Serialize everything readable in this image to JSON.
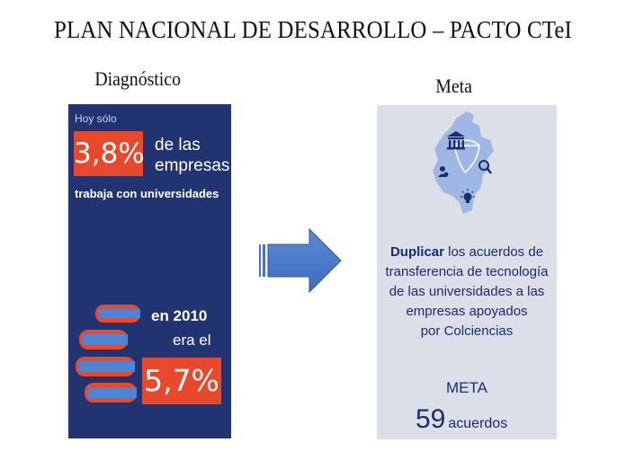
{
  "slide": {
    "title": "PLAN NACIONAL DE DESARROLLO – PACTO CTeI",
    "left_label": "Diagnóstico",
    "right_label": "Meta"
  },
  "diagnostico": {
    "intro": "Hoy sólo",
    "percent_now": "3,8%",
    "percent_now_suffix_line1": "de las",
    "percent_now_suffix_line2": "empresas",
    "statement": "trabaja con universidades",
    "year_line": "en 2010",
    "was_line": "era el",
    "percent_2010": "5,7%"
  },
  "meta": {
    "goal_bold": "Duplicar",
    "goal_rest_line1": " los acuerdos de",
    "goal_line2": "transferencia de tecnología",
    "goal_line3": "de las universidades a las",
    "goal_line4": "empresas apoyados",
    "goal_line5": "por Colciencias",
    "caption": "META",
    "value": "59",
    "unit": "acuerdos"
  },
  "colors": {
    "left_panel_bg": "#223372",
    "accent_orange": "#e8482b",
    "right_panel_bg": "#dcdfe7",
    "text_navy": "#1b2d6b",
    "arrow_blue": "#4472c4"
  },
  "icons": [
    "books-icon",
    "right-arrow-icon",
    "colombia-map-icon",
    "building-icon",
    "search-icon",
    "lightbulb-icon",
    "people-icon"
  ]
}
